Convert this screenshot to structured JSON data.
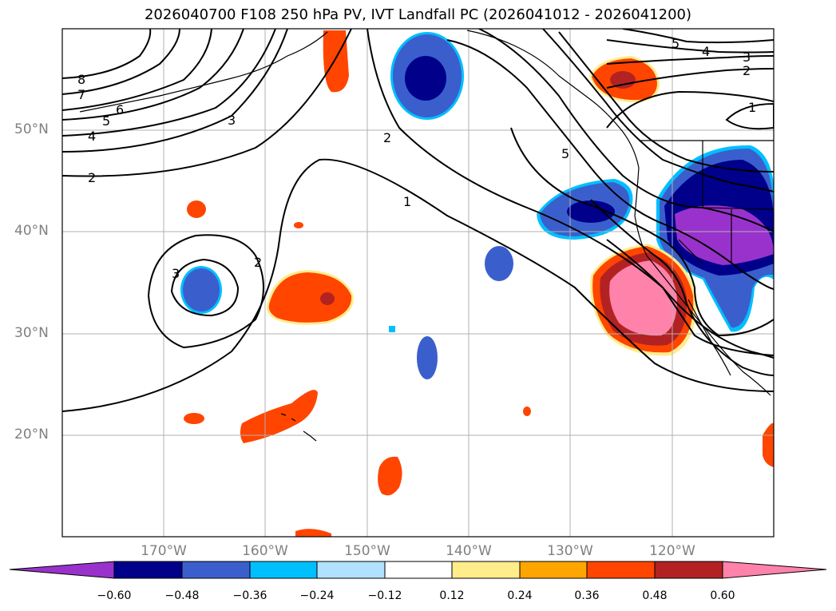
{
  "title": "2026040700 F108 250 hPa PV, IVT Landfall PC (2026041012 - 2026041200)",
  "lat_labels": [
    "50°N",
    "40°N",
    "30°N",
    "20°N"
  ],
  "lon_labels": [
    "170°W",
    "160°W",
    "150°W",
    "140°W",
    "130°W",
    "120°W"
  ],
  "colorbar": {
    "ticks": [
      "−0.60",
      "−0.48",
      "−0.36",
      "−0.24",
      "−0.12",
      "0.12",
      "0.24",
      "0.36",
      "0.48",
      "0.60"
    ],
    "colors": [
      "#9932CC",
      "#00008B",
      "#3A5FCD",
      "#00BFFF",
      "#B0E2FF",
      "#FFFFFF",
      "#FFEC8B",
      "#FFA500",
      "#FF4500",
      "#B22222",
      "#FF82AB"
    ]
  },
  "contour_labels": [
    "8",
    "7",
    "6",
    "5",
    "4",
    "2",
    "3",
    "2",
    "1",
    "5",
    "5",
    "4",
    "3",
    "2",
    "1",
    "3",
    "2"
  ],
  "colors": {
    "grid": "#b0b0b0",
    "coast": "#000000",
    "frame": "#000000"
  }
}
